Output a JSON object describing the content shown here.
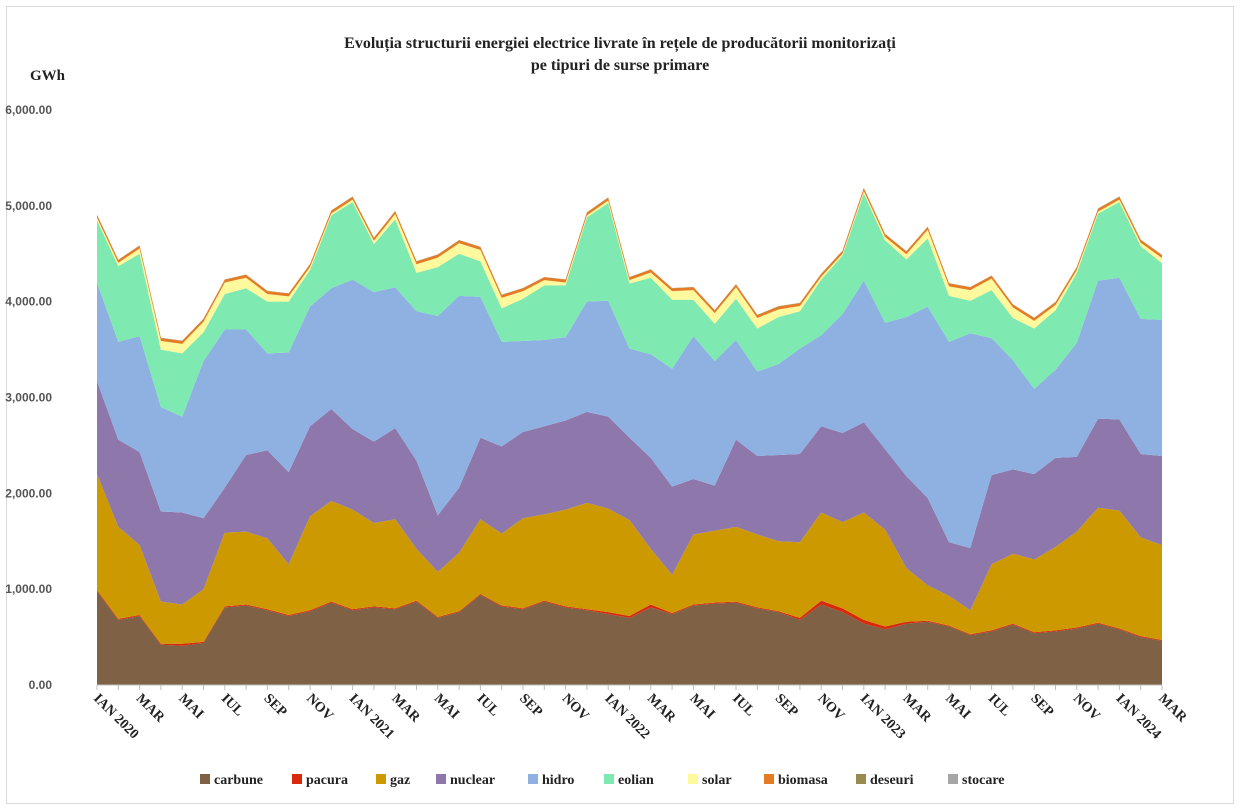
{
  "chart_data": {
    "type": "stacked_area",
    "title": [
      "Evoluția structurii energiei electrice livrate în rețele de producătorii monitorizați",
      "pe tipuri de surse primare"
    ],
    "y_label": "GWh",
    "categories": [
      "IAN 2020",
      null,
      "MAR",
      null,
      "MAI",
      null,
      "IUL",
      null,
      "SEP",
      null,
      "NOV",
      null,
      "IAN 2021",
      null,
      "MAR",
      null,
      "MAI",
      null,
      "IUL",
      null,
      "SEP",
      null,
      "NOV",
      null,
      "IAN 2022",
      null,
      "MAR",
      null,
      "MAI",
      null,
      "IUL",
      null,
      "SEP",
      null,
      "NOV",
      null,
      "IAN 2023",
      null,
      "MAR",
      null,
      "MAI",
      null,
      "IUL",
      null,
      "SEP",
      null,
      "NOV",
      null,
      "IAN 2024",
      null,
      "MAR"
    ],
    "ylim": [
      0,
      6000
    ],
    "yticks": [
      {
        "value": 0,
        "label": "0.00"
      },
      {
        "value": 1000,
        "label": "1,000.00"
      },
      {
        "value": 2000,
        "label": "2,000.00"
      },
      {
        "value": 3000,
        "label": "3,000.00"
      },
      {
        "value": 4000,
        "label": "4,000.00"
      },
      {
        "value": 5000,
        "label": "5,000.00"
      },
      {
        "value": 6000,
        "label": "6,000.00"
      }
    ],
    "legend": "bottom",
    "series": [
      {
        "name": "carbune",
        "color": "#7f6145",
        "values": [
          980,
          680,
          720,
          420,
          410,
          440,
          810,
          830,
          780,
          720,
          770,
          860,
          780,
          810,
          790,
          870,
          700,
          760,
          940,
          820,
          790,
          870,
          810,
          780,
          740,
          700,
          810,
          740,
          830,
          850,
          860,
          800,
          760,
          680,
          840,
          760,
          640,
          580,
          640,
          660,
          610,
          520,
          560,
          630,
          540,
          560,
          590,
          640,
          580,
          500,
          460
        ]
      },
      {
        "name": "pacura",
        "color": "#d8290b",
        "values": [
          10,
          10,
          10,
          10,
          20,
          10,
          10,
          10,
          10,
          10,
          10,
          10,
          10,
          10,
          10,
          10,
          10,
          10,
          10,
          10,
          10,
          10,
          10,
          10,
          20,
          20,
          30,
          10,
          10,
          10,
          10,
          10,
          10,
          20,
          40,
          40,
          40,
          30,
          20,
          10,
          10,
          10,
          10,
          10,
          10,
          10,
          10,
          10,
          10,
          10,
          10
        ]
      },
      {
        "name": "gaz",
        "color": "#cc9a00",
        "values": [
          1210,
          960,
          730,
          440,
          410,
          550,
          770,
          760,
          740,
          530,
          980,
          1050,
          1040,
          870,
          930,
          540,
          470,
          610,
          780,
          750,
          940,
          900,
          1010,
          1110,
          1080,
          1000,
          580,
          400,
          730,
          750,
          780,
          760,
          730,
          790,
          920,
          900,
          1120,
          1010,
          560,
          370,
          310,
          250,
          690,
          730,
          760,
          870,
          1000,
          1200,
          1230,
          1030,
          990
        ]
      },
      {
        "name": "nuclear",
        "color": "#8e77ab",
        "values": [
          970,
          910,
          970,
          940,
          960,
          740,
          470,
          800,
          920,
          960,
          940,
          960,
          840,
          850,
          950,
          920,
          590,
          680,
          850,
          910,
          900,
          920,
          930,
          950,
          960,
          860,
          950,
          920,
          580,
          470,
          910,
          820,
          900,
          920,
          900,
          930,
          940,
          840,
          960,
          910,
          560,
          650,
          930,
          880,
          890,
          930,
          780,
          930,
          950,
          870,
          930
        ]
      },
      {
        "name": "hidro",
        "color": "#8eb1e1",
        "values": [
          1030,
          1020,
          1210,
          1090,
          1000,
          1640,
          1650,
          1310,
          1010,
          1250,
          1250,
          1260,
          1560,
          1560,
          1470,
          1560,
          2080,
          2000,
          1470,
          1090,
          950,
          900,
          870,
          1150,
          1210,
          930,
          1080,
          1230,
          1490,
          1300,
          1040,
          880,
          950,
          1100,
          950,
          1240,
          1480,
          1320,
          1660,
          2000,
          2090,
          2240,
          1430,
          1140,
          890,
          920,
          1190,
          1440,
          1480,
          1410,
          1420
        ]
      },
      {
        "name": "eolian",
        "color": "#7ee9b1",
        "values": [
          650,
          790,
          860,
          600,
          660,
          300,
          370,
          430,
          540,
          530,
          380,
          760,
          810,
          500,
          710,
          400,
          510,
          440,
          370,
          350,
          440,
          570,
          540,
          880,
          1020,
          680,
          800,
          720,
          380,
          390,
          430,
          450,
          490,
          390,
          580,
          610,
          910,
          860,
          600,
          710,
          480,
          340,
          500,
          440,
          630,
          620,
          730,
          700,
          790,
          760,
          590
        ]
      },
      {
        "name": "solar",
        "color": "#fdf99c",
        "values": [
          25,
          35,
          55,
          90,
          100,
          110,
          120,
          110,
          80,
          55,
          30,
          20,
          25,
          35,
          55,
          90,
          100,
          110,
          120,
          110,
          80,
          55,
          30,
          20,
          25,
          35,
          55,
          90,
          100,
          110,
          120,
          110,
          80,
          55,
          30,
          20,
          25,
          35,
          55,
          90,
          100,
          110,
          120,
          110,
          80,
          55,
          30,
          20,
          25,
          35,
          55
        ]
      },
      {
        "name": "biomasa",
        "color": "#e57b25",
        "values": [
          30,
          30,
          30,
          30,
          30,
          30,
          30,
          30,
          30,
          30,
          30,
          30,
          30,
          30,
          30,
          30,
          30,
          30,
          30,
          30,
          30,
          30,
          30,
          30,
          30,
          30,
          30,
          30,
          30,
          30,
          30,
          30,
          30,
          30,
          30,
          30,
          30,
          30,
          30,
          30,
          30,
          30,
          30,
          30,
          30,
          30,
          30,
          30,
          30,
          30,
          30
        ]
      },
      {
        "name": "deseuri",
        "color": "#9a8a4f",
        "values": [
          3,
          3,
          3,
          3,
          3,
          3,
          3,
          3,
          3,
          3,
          3,
          3,
          3,
          3,
          3,
          3,
          3,
          3,
          3,
          3,
          3,
          3,
          3,
          3,
          3,
          3,
          3,
          3,
          3,
          3,
          3,
          3,
          3,
          3,
          3,
          3,
          3,
          3,
          3,
          3,
          3,
          3,
          3,
          3,
          3,
          3,
          3,
          3,
          3,
          3,
          3
        ]
      },
      {
        "name": "stocare",
        "color": "#a6a6a6",
        "values": [
          0,
          0,
          0,
          0,
          0,
          0,
          0,
          0,
          0,
          0,
          0,
          0,
          0,
          0,
          0,
          0,
          0,
          0,
          0,
          0,
          0,
          0,
          0,
          0,
          0,
          0,
          0,
          0,
          0,
          0,
          0,
          0,
          0,
          0,
          0,
          0,
          0,
          0,
          0,
          0,
          0,
          0,
          0,
          0,
          0,
          0,
          0,
          0,
          1,
          1,
          1
        ]
      }
    ]
  }
}
